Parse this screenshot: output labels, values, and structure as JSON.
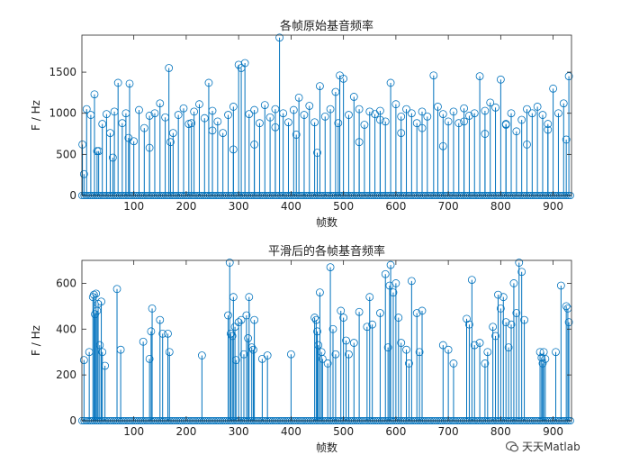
{
  "chart_data": [
    {
      "type": "stem",
      "title": "各帧原始基音频率",
      "xlabel": "帧数",
      "ylabel": "F / Hz",
      "xlim": [
        1,
        935
      ],
      "ylim": [
        0,
        1950
      ],
      "xticks": [
        100,
        200,
        300,
        400,
        500,
        600,
        700,
        800,
        900
      ],
      "yticks": [
        0,
        500,
        1000,
        1500
      ],
      "color": "#0072BD",
      "series": [
        {
          "x": [
            2,
            10,
            18,
            25,
            33,
            40,
            48,
            55,
            63,
            70,
            78,
            85,
            92,
            100,
            110,
            120,
            130,
            140,
            150,
            160,
            167,
            175,
            185,
            195,
            205,
            215,
            225,
            235,
            243,
            250,
            260,
            270,
            280,
            290,
            300,
            305,
            312,
            320,
            330,
            340,
            350,
            360,
            370,
            378,
            385,
            395,
            405,
            415,
            425,
            435,
            445,
            455,
            465,
            475,
            485,
            493,
            500,
            510,
            520,
            530,
            540,
            550,
            560,
            570,
            580,
            590,
            600,
            610,
            620,
            630,
            640,
            650,
            660,
            672,
            680,
            690,
            700,
            710,
            720,
            730,
            740,
            750,
            760,
            770,
            780,
            790,
            800,
            810,
            820,
            830,
            840,
            850,
            860,
            870,
            880,
            890,
            900,
            910,
            920,
            930
          ],
          "y": [
            620,
            1050,
            980,
            1230,
            540,
            870,
            990,
            760,
            1020,
            1370,
            880,
            1000,
            1360,
            660,
            1040,
            820,
            970,
            1000,
            1120,
            950,
            1550,
            760,
            980,
            1060,
            870,
            1020,
            1110,
            940,
            1370,
            1030,
            900,
            760,
            980,
            1080,
            1590,
            1550,
            1610,
            990,
            1040,
            880,
            1100,
            950,
            1050,
            1920,
            1000,
            890,
            1040,
            1190,
            980,
            1090,
            890,
            1330,
            960,
            1050,
            1260,
            1460,
            1420,
            980,
            1200,
            1050,
            860,
            1020,
            990,
            1030,
            900,
            1370,
            1110,
            960,
            1050,
            1000,
            880,
            1020,
            960,
            1460,
            1080,
            990,
            900,
            1020,
            880,
            1060,
            970,
            1000,
            1450,
            1030,
            1130,
            1070,
            1410,
            870,
            1000,
            780,
            920,
            1050,
            1000,
            1080,
            980,
            870,
            1300,
            1000,
            1120,
            1450
          ]
        },
        {
          "x": [
            5,
            30,
            60,
            90,
            130,
            170,
            210,
            250,
            290,
            330,
            370,
            410,
            450,
            490,
            530,
            570,
            610,
            650,
            690,
            730,
            770,
            810,
            850,
            890,
            925
          ],
          "y": [
            260,
            540,
            460,
            700,
            580,
            650,
            880,
            790,
            560,
            620,
            830,
            740,
            520,
            880,
            650,
            920,
            760,
            820,
            600,
            900,
            750,
            860,
            620,
            800,
            680
          ]
        }
      ]
    },
    {
      "type": "stem",
      "title": "平滑后的各帧基音频率",
      "xlabel": "帧数",
      "ylabel": "F / Hz",
      "xlim": [
        1,
        935
      ],
      "ylim": [
        0,
        700
      ],
      "xticks": [
        100,
        200,
        300,
        400,
        500,
        600,
        700,
        800,
        900
      ],
      "yticks": [
        0,
        200,
        400,
        600
      ],
      "color": "#0072BD",
      "series": [
        {
          "x": [
            5,
            15,
            22,
            24,
            26,
            28,
            30,
            32,
            35,
            38,
            40,
            45,
            68,
            75,
            118,
            130,
            133,
            135,
            150,
            155,
            165,
            168,
            230,
            280,
            283,
            285,
            288,
            290,
            293,
            295,
            300,
            305,
            310,
            315,
            318,
            320,
            325,
            328,
            330,
            345,
            355,
            400,
            445,
            448,
            450,
            452,
            455,
            458,
            460,
            470,
            475,
            480,
            485,
            495,
            500,
            505,
            510,
            520,
            530,
            545,
            550,
            555,
            570,
            580,
            585,
            588,
            590,
            595,
            600,
            605,
            610,
            620,
            625,
            630,
            640,
            645,
            650,
            690,
            700,
            710,
            735,
            740,
            745,
            750,
            760,
            770,
            775,
            785,
            790,
            795,
            800,
            805,
            810,
            815,
            820,
            825,
            830,
            835,
            840,
            845,
            875,
            878,
            880,
            882,
            885,
            905,
            915,
            925,
            928,
            930
          ],
          "y": [
            265,
            300,
            540,
            550,
            465,
            555,
            480,
            510,
            330,
            520,
            300,
            240,
            575,
            310,
            345,
            270,
            390,
            490,
            440,
            380,
            380,
            300,
            285,
            460,
            690,
            380,
            370,
            540,
            410,
            265,
            430,
            440,
            290,
            460,
            360,
            540,
            320,
            310,
            440,
            270,
            285,
            290,
            450,
            440,
            390,
            330,
            560,
            300,
            270,
            250,
            670,
            400,
            290,
            480,
            450,
            350,
            290,
            340,
            475,
            410,
            540,
            420,
            470,
            640,
            320,
            590,
            680,
            560,
            600,
            450,
            340,
            310,
            250,
            610,
            470,
            300,
            480,
            330,
            310,
            250,
            445,
            420,
            615,
            330,
            340,
            250,
            300,
            410,
            370,
            550,
            490,
            540,
            430,
            320,
            420,
            600,
            470,
            690,
            650,
            440,
            300,
            275,
            250,
            300,
            270,
            300,
            590,
            500,
            490,
            430
          ]
        }
      ]
    }
  ],
  "watermark": {
    "text": "天天Matlab",
    "icon": "wechat-icon"
  }
}
